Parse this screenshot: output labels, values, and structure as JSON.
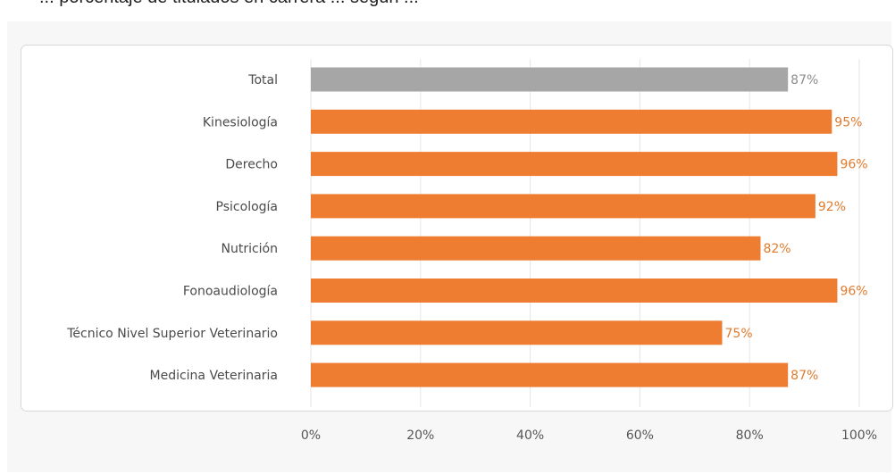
{
  "caption": "... porcentaje de titulados en carrera ... segun ...",
  "colors": {
    "total_bar": "#a6a6a6",
    "total_value": "#8c8c8c",
    "bar": "#ee7d31",
    "value": "#e07b2e",
    "grid": "#e6e6e6"
  },
  "chart_data": {
    "type": "bar",
    "orientation": "horizontal",
    "title": "",
    "xlabel": "",
    "ylabel": "",
    "xlim": [
      0,
      100
    ],
    "categories": [
      "Total",
      "Kinesiología",
      "Derecho",
      "Psicología",
      "Nutrición",
      "Fonoaudiología",
      "Técnico Nivel Superior Veterinario",
      "Medicina Veterinaria"
    ],
    "values": [
      87,
      95,
      96,
      92,
      82,
      96,
      75,
      87
    ],
    "value_labels": [
      "87%",
      "95%",
      "96%",
      "92%",
      "82%",
      "96%",
      "75%",
      "87%"
    ],
    "x_ticks": [
      "0%",
      "20%",
      "40%",
      "60%",
      "80%",
      "100%"
    ],
    "grid": true
  }
}
